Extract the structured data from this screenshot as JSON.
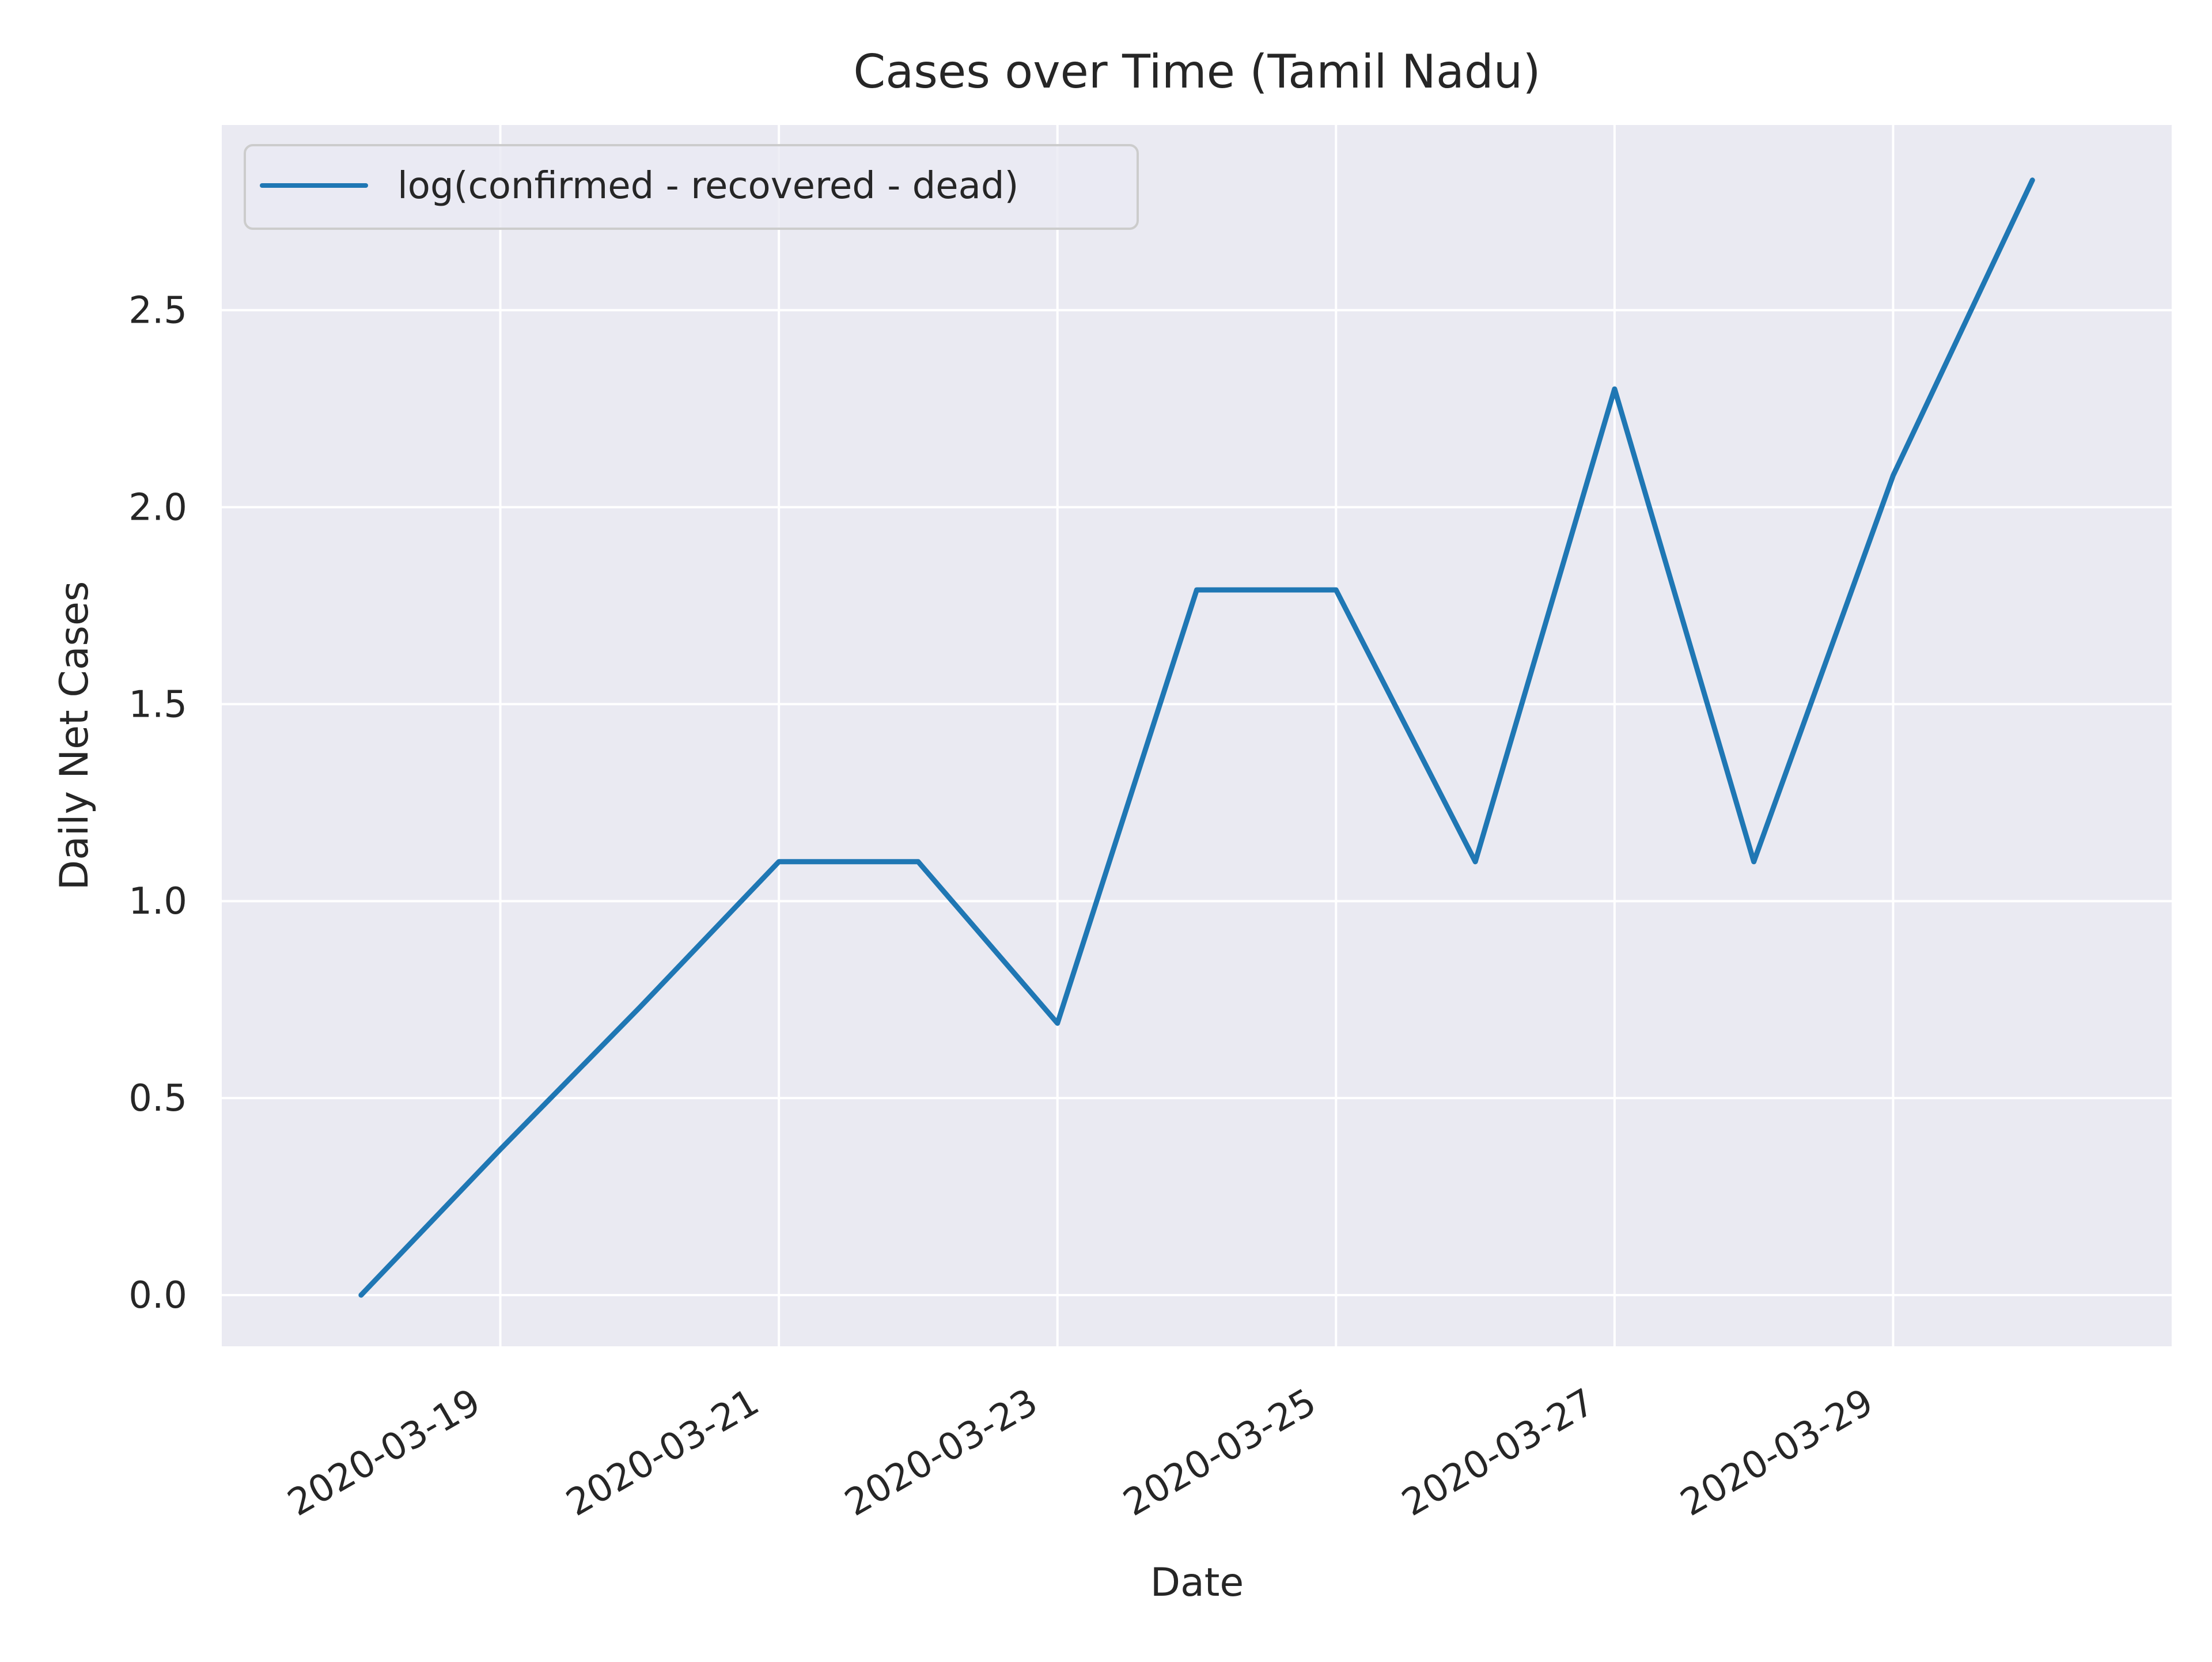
{
  "chart_data": {
    "type": "line",
    "title": "Cases over Time (Tamil Nadu)",
    "xlabel": "Date",
    "ylabel": "Daily Net Cases",
    "x": [
      "2020-03-18",
      "2020-03-19",
      "2020-03-20",
      "2020-03-21",
      "2020-03-22",
      "2020-03-23",
      "2020-03-24",
      "2020-03-25",
      "2020-03-26",
      "2020-03-27",
      "2020-03-28",
      "2020-03-29",
      "2020-03-30"
    ],
    "series": [
      {
        "name": "log(confirmed - recovered - dead)",
        "color": "#1f77b4",
        "values": [
          0.0,
          0.37,
          0.73,
          1.1,
          1.1,
          0.69,
          1.79,
          1.79,
          1.1,
          2.3,
          1.1,
          2.08,
          2.83
        ]
      }
    ],
    "xlim": [
      "2020-03-17",
      "2020-03-31"
    ],
    "ylim": [
      -0.13,
      2.97
    ],
    "x_ticks": [
      "2020-03-19",
      "2020-03-21",
      "2020-03-23",
      "2020-03-25",
      "2020-03-27",
      "2020-03-29"
    ],
    "y_ticks": [
      0.0,
      0.5,
      1.0,
      1.5,
      2.0,
      2.5
    ],
    "y_tick_labels": [
      "0.0",
      "0.5",
      "1.0",
      "1.5",
      "2.0",
      "2.5"
    ],
    "grid": true,
    "legend_position": "top-left",
    "background_color": "#eaeaf2",
    "grid_color": "#ffffff"
  }
}
